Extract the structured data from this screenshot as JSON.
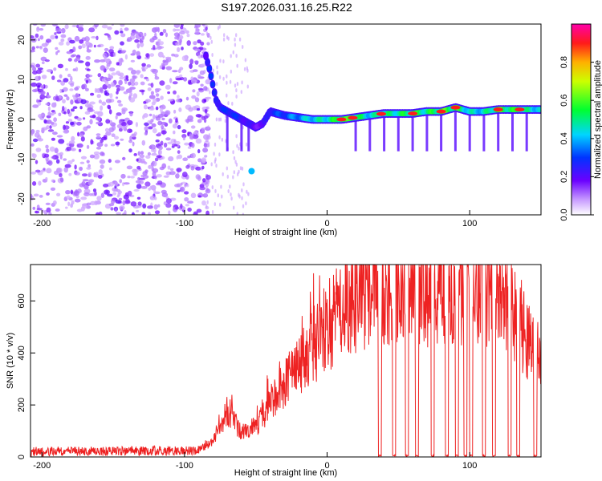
{
  "title": "S197.2026.031.16.25.R22",
  "chart_data": [
    {
      "type": "heatmap",
      "name": "spectrogram",
      "xlabel": "Height of straight line (km)",
      "ylabel": "Frequency (Hz)",
      "xlim": [
        -208,
        150
      ],
      "ylim": [
        -24,
        24
      ],
      "xticks": [
        -200,
        -100,
        0,
        100
      ],
      "yticks": [
        -20,
        -10,
        0,
        10,
        20
      ],
      "colorbar": {
        "label": "Normalized spectral amplitude",
        "range": [
          0,
          1
        ],
        "ticks": [
          0.0,
          0.2,
          0.4,
          0.6,
          0.8
        ],
        "tick_labels": [
          "0.0",
          "0.2",
          "0.4",
          "0.6",
          "0.8"
        ]
      },
      "ridge": {
        "description": "dominant frequency track vs height",
        "x": [
          -85,
          -82,
          -78,
          -75,
          -70,
          -65,
          -60,
          -55,
          -50,
          -45,
          -40,
          -30,
          -20,
          -10,
          0,
          10,
          20,
          30,
          40,
          50,
          60,
          70,
          80,
          90,
          100,
          110,
          120,
          130,
          140,
          150
        ],
        "freq": [
          16,
          12,
          5,
          3,
          2,
          1,
          0,
          -1,
          -2,
          -1,
          2,
          1,
          0.5,
          0,
          0,
          0,
          0.5,
          1,
          1.5,
          1.5,
          1.5,
          2,
          2,
          3,
          2,
          2,
          2.5,
          2.5,
          2.5,
          2.5
        ],
        "amplitude": [
          0.3,
          0.45,
          0.5,
          0.35,
          0.5,
          0.45,
          0.4,
          0.35,
          0.3,
          0.3,
          0.45,
          0.5,
          0.6,
          0.7,
          0.75,
          0.9,
          0.85,
          0.7,
          0.75,
          0.8,
          0.85,
          0.8,
          0.9,
          0.9,
          0.7,
          0.7,
          0.9,
          0.85,
          0.75,
          0.7
        ]
      }
    },
    {
      "type": "line",
      "name": "snr",
      "xlabel": "Height of straight line (km)",
      "ylabel": "SNR (10 * v/v)",
      "xlim": [
        -208,
        150
      ],
      "ylim": [
        0,
        740
      ],
      "xticks": [
        -200,
        -100,
        0,
        100
      ],
      "yticks": [
        0,
        200,
        400,
        600
      ],
      "color": "#ee2222",
      "envelope": {
        "x": [
          -208,
          -90,
          -80,
          -75,
          -70,
          -65,
          -60,
          -50,
          -40,
          -30,
          -20,
          -10,
          0,
          10,
          20,
          30,
          40,
          50,
          60,
          70,
          80,
          90,
          100,
          110,
          120,
          130,
          140,
          145,
          150
        ],
        "value": [
          20,
          25,
          60,
          120,
          180,
          140,
          90,
          120,
          200,
          280,
          340,
          420,
          500,
          560,
          600,
          640,
          660,
          660,
          650,
          640,
          660,
          640,
          620,
          640,
          640,
          580,
          460,
          420,
          420
        ]
      },
      "dropouts_x": [
        37,
        47,
        56,
        63,
        74,
        84,
        91,
        97,
        101,
        110,
        117,
        128,
        134,
        146
      ]
    }
  ]
}
